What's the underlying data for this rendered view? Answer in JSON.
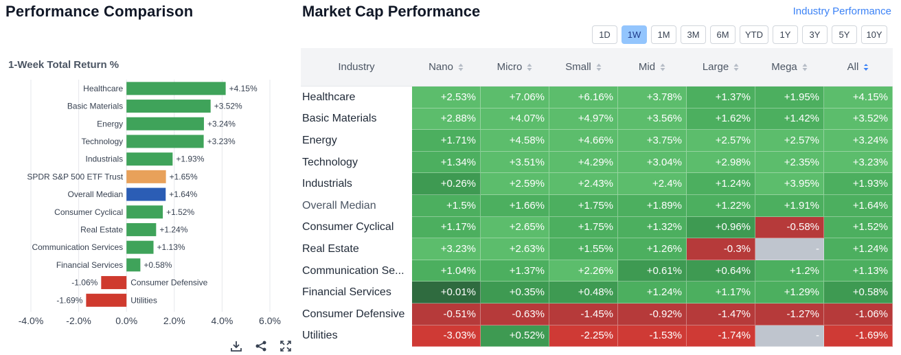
{
  "left": {
    "title": "Performance Comparison",
    "subtitle": "1-Week Total Return %"
  },
  "chart_data": {
    "type": "bar",
    "orientation": "horizontal",
    "title": "1-Week Total Return %",
    "categories": [
      "Healthcare",
      "Basic Materials",
      "Energy",
      "Technology",
      "Industrials",
      "SPDR S&P 500 ETF Trust",
      "Overall Median",
      "Consumer Cyclical",
      "Real Estate",
      "Communication Services",
      "Financial Services",
      "Consumer Defensive",
      "Utilities"
    ],
    "values": [
      4.15,
      3.52,
      3.24,
      3.23,
      1.93,
      1.65,
      1.64,
      1.52,
      1.24,
      1.13,
      0.58,
      -1.06,
      -1.69
    ],
    "value_labels": [
      "+4.15%",
      "+3.52%",
      "+3.24%",
      "+3.23%",
      "+1.93%",
      "+1.65%",
      "+1.64%",
      "+1.52%",
      "+1.24%",
      "+1.13%",
      "+0.58%",
      "-1.06%",
      "-1.69%"
    ],
    "bar_colors": [
      "#3fa35a",
      "#3fa35a",
      "#3fa35a",
      "#3fa35a",
      "#3fa35a",
      "#e8a15a",
      "#2b5db5",
      "#3fa35a",
      "#3fa35a",
      "#3fa35a",
      "#3fa35a",
      "#cf3a2e",
      "#cf3a2e"
    ],
    "xlim": [
      -4,
      6
    ],
    "xticks": [
      "-4.0%",
      "-2.0%",
      "0.0%",
      "2.0%",
      "4.0%",
      "6.0%"
    ],
    "xtick_values": [
      -4,
      -2,
      0,
      2,
      4,
      6
    ],
    "grid": "vertical"
  },
  "right": {
    "title": "Market Cap Performance",
    "link": "Industry Performance",
    "periods": [
      "1D",
      "1W",
      "1M",
      "3M",
      "6M",
      "YTD",
      "1Y",
      "3Y",
      "5Y",
      "10Y"
    ],
    "active_period": "1W",
    "columns": [
      "Industry",
      "Nano",
      "Micro",
      "Small",
      "Mid",
      "Large",
      "Mega",
      "All"
    ],
    "sorted_column": "All",
    "rows": [
      {
        "name": "Healthcare",
        "values": [
          "+2.53%",
          "+7.06%",
          "+6.16%",
          "+3.78%",
          "+1.37%",
          "+1.95%",
          "+4.15%"
        ]
      },
      {
        "name": "Basic Materials",
        "values": [
          "+2.88%",
          "+4.07%",
          "+4.97%",
          "+3.56%",
          "+1.62%",
          "+1.42%",
          "+3.52%"
        ]
      },
      {
        "name": "Energy",
        "values": [
          "+1.71%",
          "+4.58%",
          "+4.66%",
          "+3.75%",
          "+2.57%",
          "+2.57%",
          "+3.24%"
        ]
      },
      {
        "name": "Technology",
        "values": [
          "+1.34%",
          "+3.51%",
          "+4.29%",
          "+3.04%",
          "+2.98%",
          "+2.35%",
          "+3.23%"
        ]
      },
      {
        "name": "Industrials",
        "values": [
          "+0.26%",
          "+2.59%",
          "+2.43%",
          "+2.4%",
          "+1.24%",
          "+3.95%",
          "+1.93%"
        ]
      },
      {
        "name": "Overall Median",
        "values": [
          "+1.5%",
          "+1.66%",
          "+1.75%",
          "+1.89%",
          "+1.22%",
          "+1.91%",
          "+1.64%"
        ]
      },
      {
        "name": "Consumer Cyclical",
        "values": [
          "+1.17%",
          "+2.65%",
          "+1.75%",
          "+1.32%",
          "+0.96%",
          "-0.58%",
          "+1.52%"
        ]
      },
      {
        "name": "Real Estate",
        "values": [
          "+3.23%",
          "+2.63%",
          "+1.55%",
          "+1.26%",
          "-0.3%",
          "-",
          "+1.24%"
        ]
      },
      {
        "name": "Communication Se...",
        "values": [
          "+1.04%",
          "+1.37%",
          "+2.26%",
          "+0.61%",
          "+0.64%",
          "+1.2%",
          "+1.13%"
        ]
      },
      {
        "name": "Financial Services",
        "values": [
          "+0.01%",
          "+0.35%",
          "+0.48%",
          "+1.24%",
          "+1.17%",
          "+1.29%",
          "+0.58%"
        ]
      },
      {
        "name": "Consumer Defensive",
        "values": [
          "-0.51%",
          "-0.63%",
          "-1.45%",
          "-0.92%",
          "-1.47%",
          "-1.27%",
          "-1.06%"
        ]
      },
      {
        "name": "Utilities",
        "values": [
          "-3.03%",
          "+0.52%",
          "-2.25%",
          "-1.53%",
          "-1.74%",
          "-",
          "-1.69%"
        ]
      }
    ]
  },
  "colors": {
    "green_dark": "#2f6b3f",
    "green_mid": "#3e9a52",
    "green": "#4caf5f",
    "green_light": "#5cbd6c",
    "red": "#cf3a35",
    "red_dark": "#b63a3a",
    "neutral": "#bfc5ce",
    "link": "#3b82f6",
    "active_period": "#93c5fd"
  },
  "icons": [
    "download-icon",
    "share-icon",
    "fullscreen-icon",
    "sort-icon",
    "sort-desc-icon"
  ]
}
